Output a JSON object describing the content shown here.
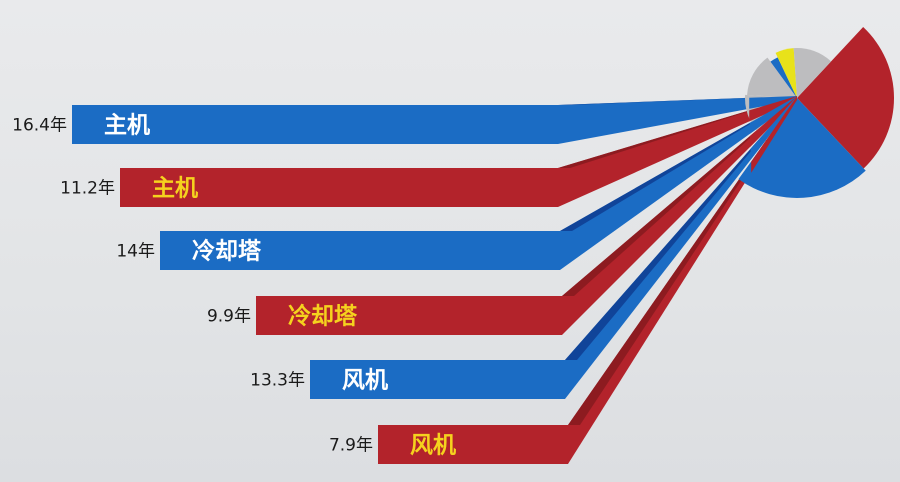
{
  "chart_data": {
    "type": "bar",
    "orientation": "horizontal",
    "title": "",
    "unit": "年",
    "bars": [
      {
        "value_label": "16.4年",
        "value": 16.4,
        "name": "主机",
        "color": "#1b6cc4"
      },
      {
        "value_label": "11.2年",
        "value": 11.2,
        "name": "主机",
        "color": "#b3232b"
      },
      {
        "value_label": "14年",
        "value": 14,
        "name": "冷却塔",
        "color": "#1b6cc4"
      },
      {
        "value_label": "9.9年",
        "value": 9.9,
        "name": "冷却塔",
        "color": "#b3232b"
      },
      {
        "value_label": "13.3年",
        "value": 13.3,
        "name": "风机",
        "color": "#1b6cc4"
      },
      {
        "value_label": "7.9年",
        "value": 7.9,
        "name": "风机",
        "color": "#b3232b"
      }
    ],
    "label_colors": {
      "blue_bar": "#ffffff",
      "red_bar": "#f5d21e"
    },
    "pie": {
      "type": "pie",
      "slices": [
        {
          "share": 26,
          "color": "#b3232b"
        },
        {
          "share": 22,
          "color": "#1b6cc4"
        },
        {
          "share": 16,
          "color": "#bdbdbf"
        },
        {
          "share": 14,
          "color": "#bdbdbf"
        },
        {
          "share": 3,
          "color": "#1b6cc4"
        },
        {
          "share": 6,
          "color": "#e8e21a"
        },
        {
          "share": 13,
          "color": "#bdbdbf"
        }
      ]
    }
  }
}
